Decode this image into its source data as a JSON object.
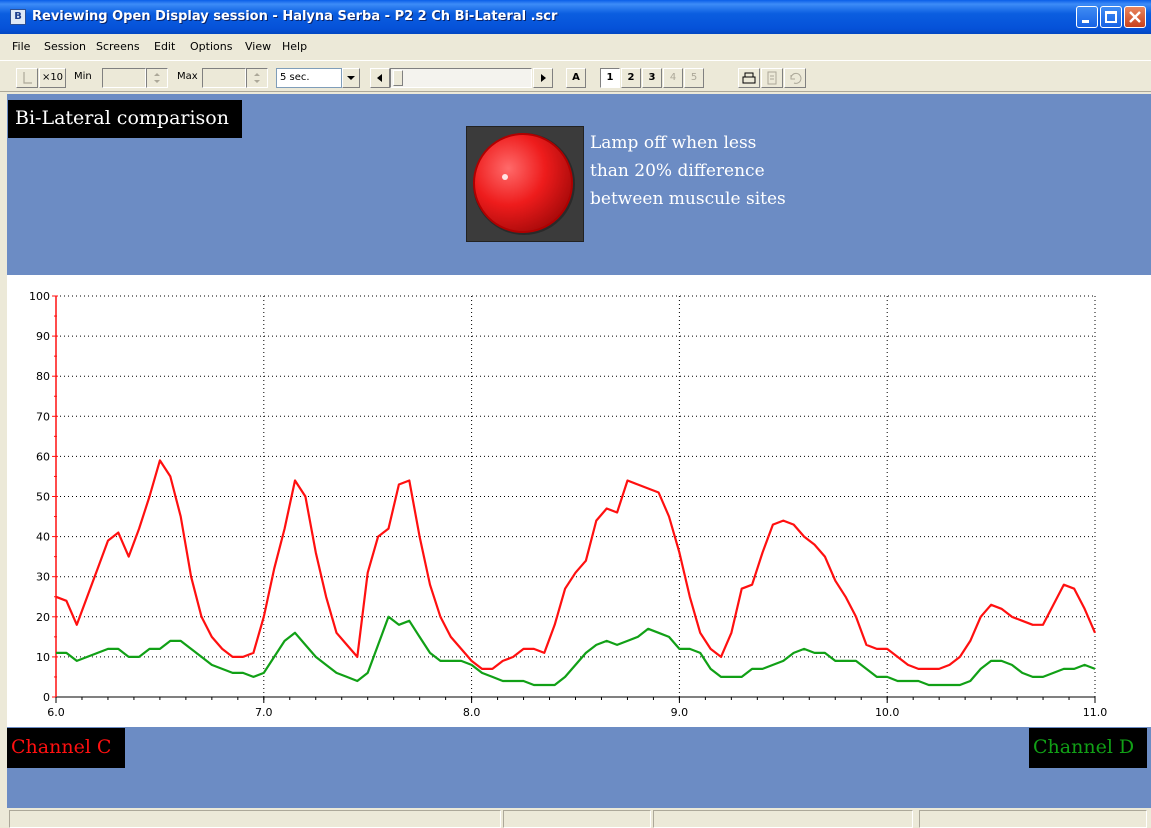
{
  "window": {
    "title": "Reviewing Open Display session - Halyna Serba - P2 2 Ch Bi-Lateral .scr",
    "app_icon": "biograph-app-icon"
  },
  "menu": [
    "File",
    "Session",
    "Screens",
    "Edit",
    "Options",
    "View",
    "Help"
  ],
  "toolbar": {
    "scale_button": "×10",
    "min_label": "Min",
    "min_value": "",
    "max_label": "Max",
    "max_value": "",
    "timebase": "5 sec.",
    "auto_button": "A",
    "pages": [
      "1",
      "2",
      "3",
      "4",
      "5"
    ],
    "active_page": "1"
  },
  "panel": {
    "label": "Bi-Lateral comparison",
    "lamp_note_lines": [
      "Lamp off when less",
      "than 20% difference",
      "between muscule sites"
    ],
    "lamp_color": "#ee1c1c"
  },
  "channels": {
    "c_label": "Channel C",
    "d_label": "Channel D",
    "c_color": "#ff1010",
    "d_color": "#11a016"
  },
  "chart_data": {
    "type": "line",
    "title": "",
    "xlabel": "",
    "ylabel": "",
    "xlim": [
      6.0,
      11.0
    ],
    "ylim": [
      0,
      100
    ],
    "x_ticks": [
      "6.0",
      "7.0",
      "8.0",
      "9.0",
      "10.0",
      "11.0"
    ],
    "y_ticks": [
      "0",
      "10",
      "20",
      "30",
      "40",
      "50",
      "60",
      "70",
      "80",
      "90",
      "100"
    ],
    "grid": true,
    "series": [
      {
        "color": "#ff1010",
        "x": [
          6.0,
          6.05,
          6.1,
          6.15,
          6.2,
          6.25,
          6.3,
          6.35,
          6.4,
          6.45,
          6.5,
          6.55,
          6.6,
          6.65,
          6.7,
          6.75,
          6.8,
          6.85,
          6.9,
          6.95,
          7.0,
          7.05,
          7.1,
          7.15,
          7.2,
          7.25,
          7.3,
          7.35,
          7.4,
          7.45,
          7.5,
          7.55,
          7.6,
          7.65,
          7.7,
          7.75,
          7.8,
          7.85,
          7.9,
          7.95,
          8.0,
          8.05,
          8.1,
          8.15,
          8.2,
          8.25,
          8.3,
          8.35,
          8.4,
          8.45,
          8.5,
          8.55,
          8.6,
          8.65,
          8.7,
          8.75,
          8.8,
          8.85,
          8.9,
          8.95,
          9.0,
          9.05,
          9.1,
          9.15,
          9.2,
          9.25,
          9.3,
          9.35,
          9.4,
          9.45,
          9.5,
          9.55,
          9.6,
          9.65,
          9.7,
          9.75,
          9.8,
          9.85,
          9.9,
          9.95,
          10.0,
          10.05,
          10.1,
          10.15,
          10.2,
          10.25,
          10.3,
          10.35,
          10.4,
          10.45,
          10.5,
          10.55,
          10.6,
          10.65,
          10.7,
          10.75,
          10.8,
          10.85,
          10.9,
          10.95,
          11.0
        ],
        "y": [
          25,
          24,
          18,
          25,
          32,
          39,
          41,
          35,
          42,
          50,
          59,
          55,
          45,
          30,
          20,
          15,
          12,
          10,
          10,
          11,
          20,
          32,
          42,
          54,
          50,
          36,
          25,
          16,
          13,
          10,
          31,
          40,
          42,
          53,
          54,
          40,
          28,
          20,
          15,
          12,
          9,
          7,
          7,
          9,
          10,
          12,
          12,
          11,
          18,
          27,
          31,
          34,
          44,
          47,
          46,
          54,
          53,
          52,
          51,
          45,
          36,
          25,
          16,
          12,
          10,
          16,
          27,
          28,
          36,
          43,
          44,
          43,
          40,
          38,
          35,
          29,
          25,
          20,
          13,
          12,
          12,
          10,
          8,
          7,
          7,
          7,
          8,
          10,
          14,
          20,
          23,
          22,
          20,
          19,
          18,
          18,
          23,
          28,
          27,
          22,
          16
        ]
      },
      {
        "color": "#11a016",
        "x": [
          6.0,
          6.05,
          6.1,
          6.15,
          6.2,
          6.25,
          6.3,
          6.35,
          6.4,
          6.45,
          6.5,
          6.55,
          6.6,
          6.65,
          6.7,
          6.75,
          6.8,
          6.85,
          6.9,
          6.95,
          7.0,
          7.05,
          7.1,
          7.15,
          7.2,
          7.25,
          7.3,
          7.35,
          7.4,
          7.45,
          7.5,
          7.55,
          7.6,
          7.65,
          7.7,
          7.75,
          7.8,
          7.85,
          7.9,
          7.95,
          8.0,
          8.05,
          8.1,
          8.15,
          8.2,
          8.25,
          8.3,
          8.35,
          8.4,
          8.45,
          8.5,
          8.55,
          8.6,
          8.65,
          8.7,
          8.75,
          8.8,
          8.85,
          8.9,
          8.95,
          9.0,
          9.05,
          9.1,
          9.15,
          9.2,
          9.25,
          9.3,
          9.35,
          9.4,
          9.45,
          9.5,
          9.55,
          9.6,
          9.65,
          9.7,
          9.75,
          9.8,
          9.85,
          9.9,
          9.95,
          10.0,
          10.05,
          10.1,
          10.15,
          10.2,
          10.25,
          10.3,
          10.35,
          10.4,
          10.45,
          10.5,
          10.55,
          10.6,
          10.65,
          10.7,
          10.75,
          10.8,
          10.85,
          10.9,
          10.95,
          11.0
        ],
        "y": [
          11,
          11,
          9,
          10,
          11,
          12,
          12,
          10,
          10,
          12,
          12,
          14,
          14,
          12,
          10,
          8,
          7,
          6,
          6,
          5,
          6,
          10,
          14,
          16,
          13,
          10,
          8,
          6,
          5,
          4,
          6,
          13,
          20,
          18,
          19,
          15,
          11,
          9,
          9,
          9,
          8,
          6,
          5,
          4,
          4,
          4,
          3,
          3,
          3,
          5,
          8,
          11,
          13,
          14,
          13,
          14,
          15,
          17,
          16,
          15,
          12,
          12,
          11,
          7,
          5,
          5,
          5,
          7,
          7,
          8,
          9,
          11,
          12,
          11,
          11,
          9,
          9,
          9,
          7,
          5,
          5,
          4,
          4,
          4,
          3,
          3,
          3,
          3,
          4,
          7,
          9,
          9,
          8,
          6,
          5,
          5,
          6,
          7,
          7,
          8,
          7
        ]
      }
    ]
  }
}
